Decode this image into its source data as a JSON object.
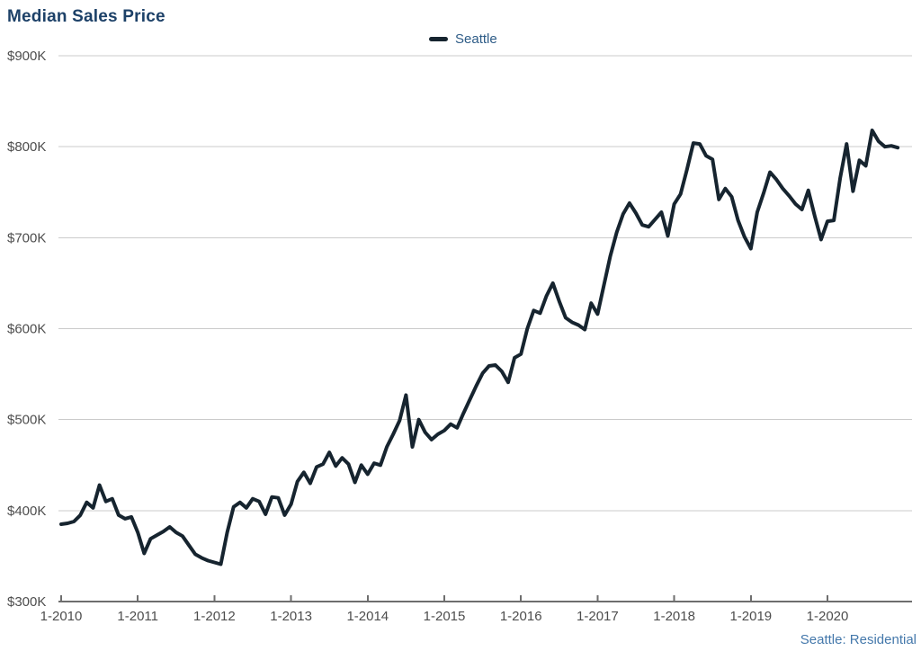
{
  "colors": {
    "title": "#1d4168",
    "legend_label": "#2e5c87",
    "attribution": "#4478ab",
    "gridline": "#cbcbcb",
    "axis": "#6e6e6e",
    "tick_label": "#4d4d4d",
    "series_line": "#16242f",
    "background": "#ffffff"
  },
  "chart_data": {
    "type": "line",
    "title": "Median Sales Price",
    "legend": [
      {
        "label": "Seattle"
      }
    ],
    "attribution": "Seattle: Residential",
    "grid": "horizontal-only",
    "legend_position": "top-center",
    "ylim_usd": [
      300000,
      900000
    ],
    "y_tick_labels": [
      "$900K",
      "$800K",
      "$700K",
      "$600K",
      "$500K",
      "$400K",
      "$300K"
    ],
    "x_tick_labels": [
      "1-2010",
      "1-2011",
      "1-2012",
      "1-2013",
      "1-2014",
      "1-2015",
      "1-2016",
      "1-2017",
      "1-2018",
      "1-2019",
      "1-2020"
    ],
    "x_axis_extends_past_last_tick_months": 13,
    "series": [
      {
        "name": "Seattle",
        "start": "1-2010",
        "interval": "monthly",
        "unit": "USD thousands",
        "values": [
          385,
          386,
          388,
          395,
          409,
          403,
          428,
          410,
          413,
          395,
          391,
          393,
          376,
          353,
          369,
          373,
          377,
          382,
          376,
          372,
          362,
          352,
          348,
          345,
          343,
          341,
          376,
          404,
          409,
          403,
          413,
          410,
          396,
          415,
          414,
          395,
          407,
          432,
          442,
          430,
          448,
          451,
          464,
          449,
          458,
          451,
          431,
          450,
          440,
          452,
          450,
          470,
          484,
          499,
          527,
          470,
          500,
          486,
          478,
          484,
          488,
          495,
          491,
          507,
          522,
          537,
          551,
          559,
          560,
          553,
          541,
          568,
          572,
          600,
          620,
          617,
          636,
          650,
          630,
          612,
          607,
          604,
          599,
          628,
          616,
          648,
          680,
          706,
          726,
          738,
          727,
          714,
          712,
          720,
          728,
          702,
          737,
          748,
          775,
          804,
          803,
          790,
          786,
          742,
          754,
          745,
          719,
          701,
          688,
          728,
          749,
          772,
          764,
          754,
          746,
          737,
          731,
          752,
          724,
          698,
          718,
          719,
          766,
          803,
          751,
          785,
          779,
          818,
          806,
          800,
          801,
          799
        ]
      }
    ]
  }
}
